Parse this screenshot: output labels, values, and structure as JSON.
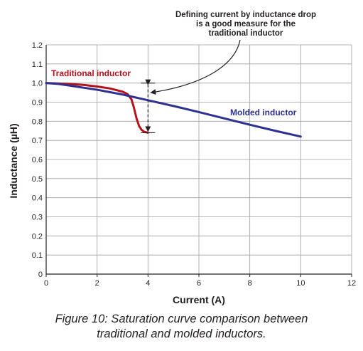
{
  "chart_data": {
    "type": "line",
    "title": "",
    "xlabel": "Current (A)",
    "ylabel": "Inductance (µH)",
    "xlim": [
      0,
      12
    ],
    "ylim": [
      0,
      1.2
    ],
    "xticks": [
      0,
      2,
      4,
      6,
      8,
      10,
      12
    ],
    "yticks": [
      0,
      0.1,
      0.2,
      0.3,
      0.4,
      0.5,
      0.6,
      0.7,
      0.8,
      0.9,
      1.0,
      1.1,
      1.2
    ],
    "ytick_labels": [
      "0",
      "0.1",
      "0.2",
      "0.3",
      "0.4",
      "0.5",
      "0.6",
      "0.7",
      "0.8",
      "0.9",
      "1.0",
      "1.1",
      "1.2"
    ],
    "grid": true,
    "series": [
      {
        "name": "Traditional inductor",
        "color": "#b5121b",
        "x": [
          0,
          0.5,
          1,
          1.5,
          2,
          2.5,
          3,
          3.2,
          3.35,
          3.45,
          3.55,
          3.65,
          3.75,
          3.85,
          4.0
        ],
        "y": [
          1.0,
          0.998,
          0.995,
          0.99,
          0.982,
          0.972,
          0.955,
          0.942,
          0.915,
          0.87,
          0.815,
          0.775,
          0.755,
          0.745,
          0.74
        ]
      },
      {
        "name": "Molded inductor",
        "color": "#2e3192",
        "x": [
          0,
          0.5,
          1,
          2,
          3,
          4,
          5,
          6,
          7,
          8,
          9,
          10
        ],
        "y": [
          1.0,
          0.995,
          0.985,
          0.965,
          0.94,
          0.91,
          0.88,
          0.848,
          0.815,
          0.782,
          0.75,
          0.72
        ]
      }
    ],
    "annotation": {
      "lines": [
        "Defining current by inductance drop",
        "is a good measure for the",
        "traditional inductor"
      ],
      "x": 4,
      "y_top": 1.0,
      "y_bottom": 0.74,
      "arrow_target_y": 0.95
    }
  },
  "caption": {
    "line1": "Figure 10: Saturation curve comparison between",
    "line2": "traditional and molded inductors."
  }
}
